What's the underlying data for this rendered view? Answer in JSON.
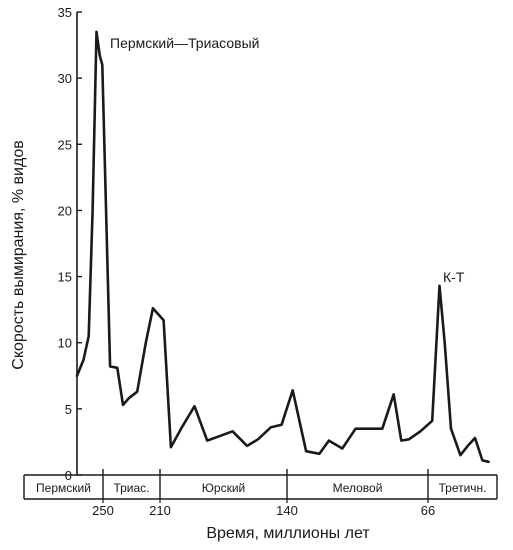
{
  "chart_data": {
    "type": "line",
    "ylabel": "Скорость вымирания, % видов",
    "xlabel": "Время, миллионы лет",
    "ylim": [
      0,
      35
    ],
    "yticks": [
      0,
      5,
      10,
      15,
      20,
      25,
      30,
      35
    ],
    "xticks": [
      "250",
      "210",
      "140",
      "66"
    ],
    "grid": false,
    "periods": [
      "Пермский",
      "Триас.",
      "Юрский",
      "Меловой",
      "Третичн."
    ],
    "annotations": [
      {
        "text": "Пермский—Триасовый",
        "x": 251,
        "y": 33.5
      },
      {
        "text": "К-Т",
        "x": 66,
        "y": 14.3
      }
    ],
    "series": [
      {
        "x": [
          290,
          280,
          272,
          266,
          260,
          255,
          251,
          245,
          240,
          236,
          232,
          226,
          220,
          215,
          208,
          204,
          198,
          191,
          184,
          176,
          170,
          162,
          156,
          149,
          143,
          137,
          130,
          123,
          118,
          111,
          104,
          97,
          90,
          84,
          80,
          76,
          70,
          62,
          55,
          50,
          44,
          35,
          28,
          21,
          14,
          8
        ],
        "values": [
          7.5,
          8.7,
          10.5,
          20,
          33.5,
          31.7,
          31,
          8.2,
          8.1,
          5.3,
          5.8,
          6.3,
          10,
          12.6,
          11.7,
          2.1,
          3.6,
          5.2,
          2.6,
          3.0,
          3.3,
          2.2,
          2.7,
          3.6,
          3.8,
          6.4,
          1.8,
          1.6,
          2.6,
          2.0,
          3.5,
          3.5,
          3.5,
          6.1,
          2.6,
          2.7,
          3.3,
          4.1,
          14.3,
          10,
          3.5,
          1.5,
          2.2,
          2.8,
          1.1,
          1.0
        ]
      }
    ]
  }
}
